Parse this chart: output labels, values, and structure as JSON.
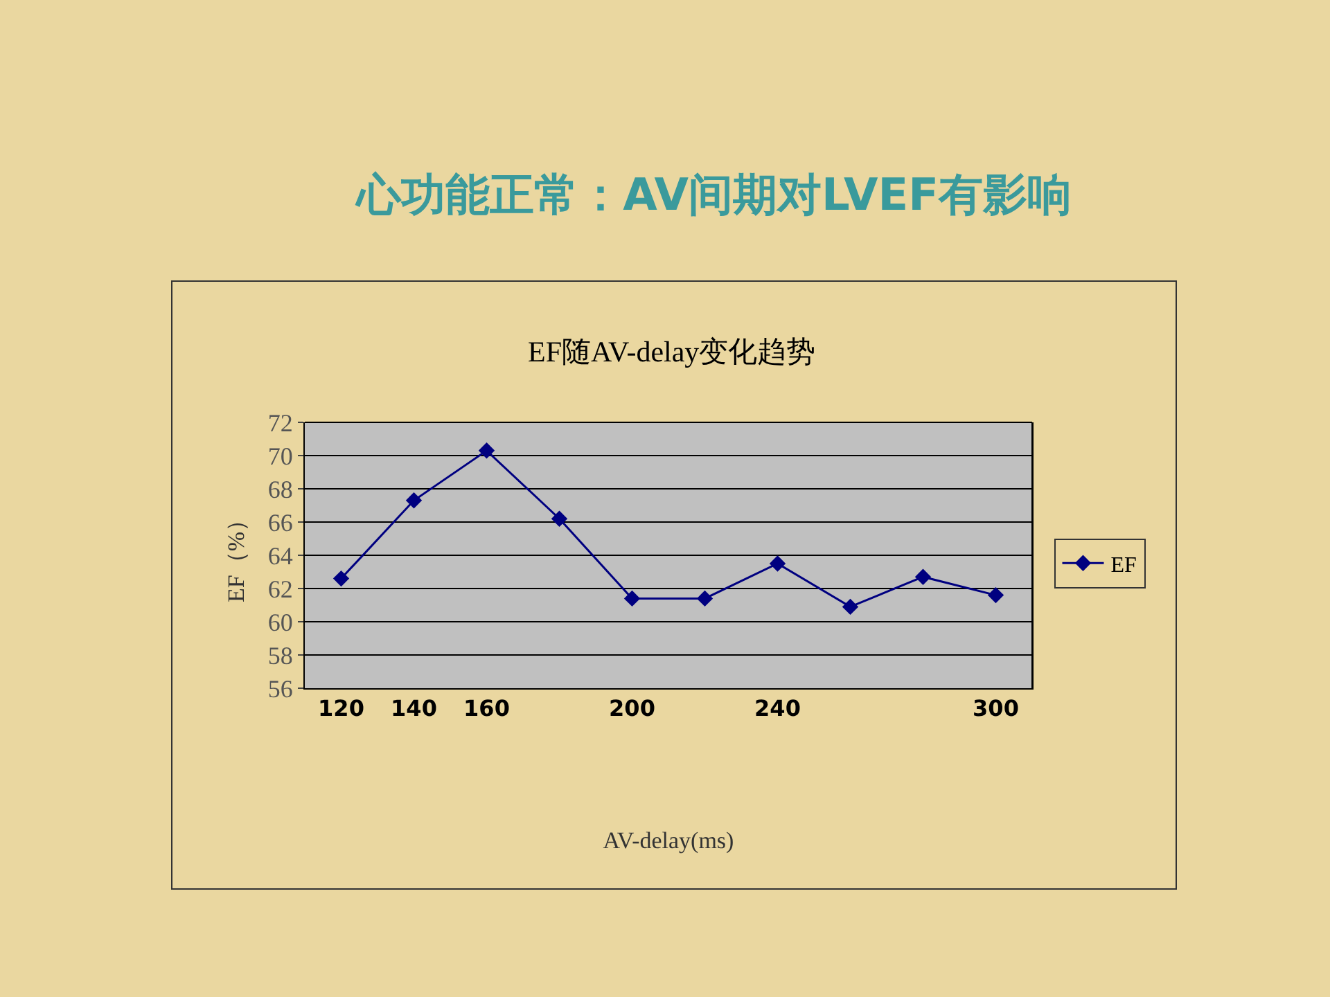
{
  "chart_data": {
    "type": "line",
    "title": "心功能正常：AV间期对LVEF有影响",
    "subtitle": "EF随AV-delay变化趋势",
    "xlabel": "AV-delay(ms)",
    "ylabel": "EF（%）",
    "categories": [
      "120",
      "140",
      "160",
      null,
      "200",
      null,
      "240",
      null,
      null,
      "300"
    ],
    "series": [
      {
        "name": "EF",
        "color": "#000080",
        "values": [
          62.6,
          67.3,
          70.3,
          66.2,
          61.4,
          61.4,
          63.5,
          60.9,
          62.7,
          61.6
        ]
      }
    ],
    "ylim": [
      56,
      72
    ],
    "yticks": [
      56,
      58,
      60,
      62,
      64,
      66,
      68,
      70,
      72
    ],
    "grid": "y",
    "legend": "right",
    "marker": "diamond",
    "line_style": "solid"
  }
}
